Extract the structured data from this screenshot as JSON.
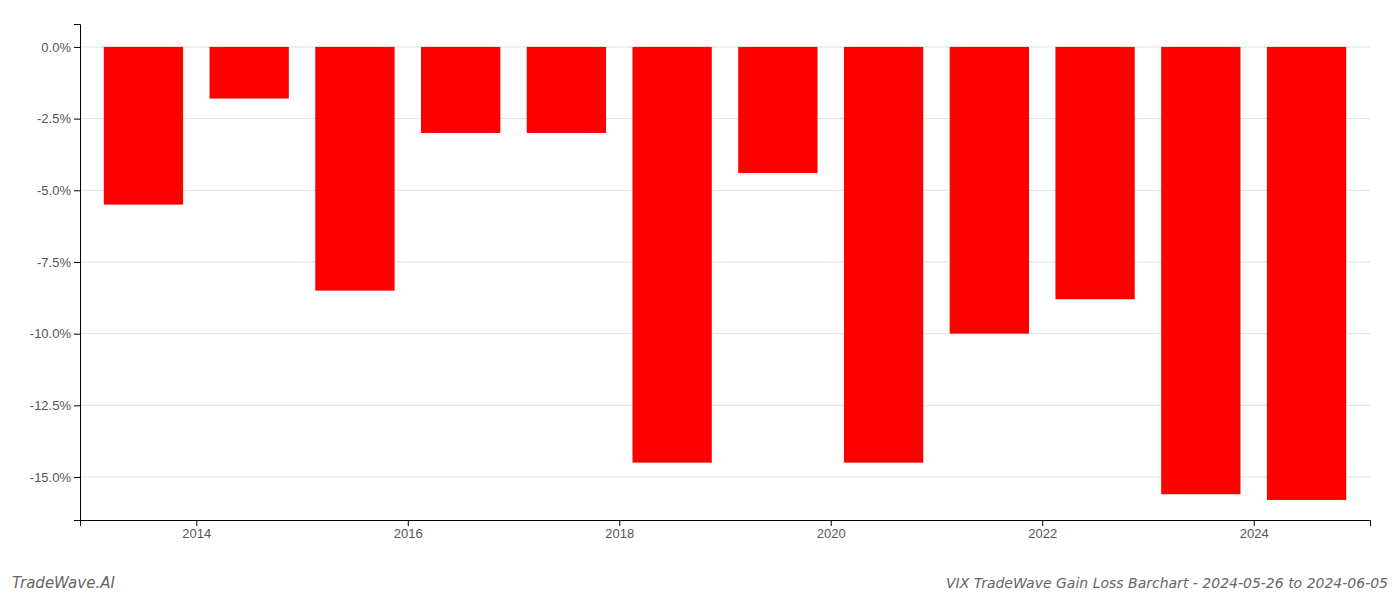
{
  "chart_data": {
    "type": "bar",
    "title": "VIX TradeWave Gain Loss Barchart - 2024-05-26 to 2024-06-05",
    "annotations": [
      "TradeWave.AI"
    ],
    "x": [
      2013,
      2014,
      2015,
      2016,
      2017,
      2018,
      2019,
      2020,
      2021,
      2022,
      2023,
      2024
    ],
    "values": [
      -5.5,
      -1.8,
      -8.5,
      -3.0,
      -3.0,
      -14.5,
      -4.4,
      -14.5,
      -10.0,
      -8.8,
      -15.6,
      -15.8
    ],
    "color": "#ff0000",
    "xlim": [
      2012.4,
      2024.6
    ],
    "xticks": [
      {
        "value": 2013.5,
        "label": "2014"
      },
      {
        "value": 2015.5,
        "label": "2016"
      },
      {
        "value": 2017.5,
        "label": "2018"
      },
      {
        "value": 2019.5,
        "label": "2020"
      },
      {
        "value": 2021.5,
        "label": "2022"
      },
      {
        "value": 2023.5,
        "label": "2024"
      }
    ],
    "ylim": [
      -16.5,
      0.8
    ],
    "yticks": [
      {
        "value": 0.0,
        "label": "0.0%"
      },
      {
        "value": -2.5,
        "label": "-2.5%"
      },
      {
        "value": -5.0,
        "label": "-5.0%"
      },
      {
        "value": -7.5,
        "label": "-7.5%"
      },
      {
        "value": -10.0,
        "label": "-10.0%"
      },
      {
        "value": -12.5,
        "label": "-12.5%"
      },
      {
        "value": -15.0,
        "label": "-15.0%"
      }
    ],
    "grid": true
  }
}
